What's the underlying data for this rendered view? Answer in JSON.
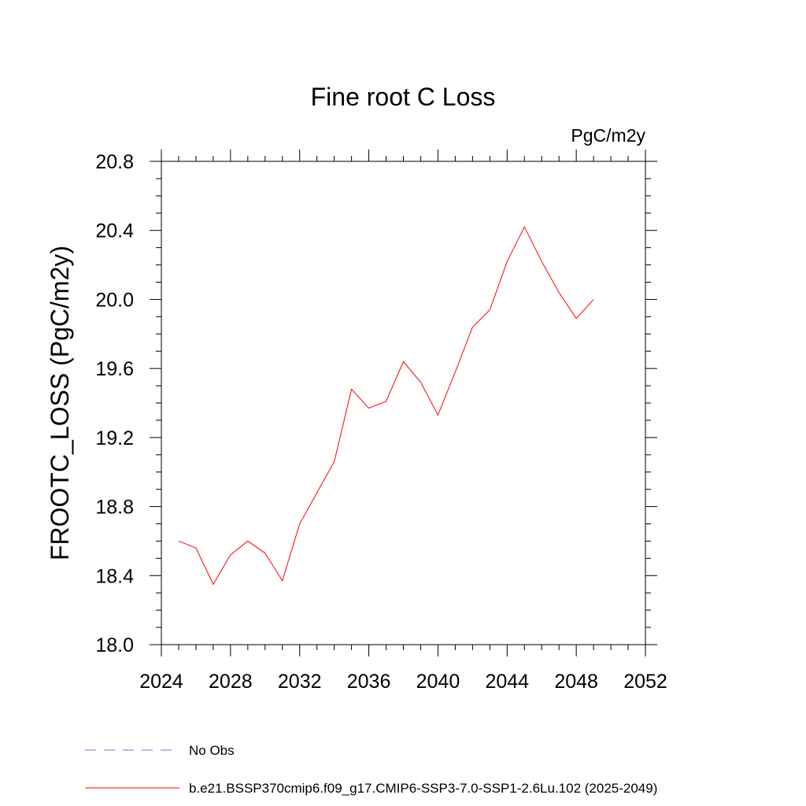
{
  "chart_data": {
    "type": "line",
    "title": "Fine root C Loss",
    "units": "PgC/m2y",
    "ylabel": "FROOTC_LOSS  (PgC/m2y)",
    "xlabel": "",
    "xlim": [
      2024,
      2052
    ],
    "ylim": [
      18.0,
      20.8
    ],
    "x_ticks": [
      2024,
      2028,
      2032,
      2036,
      2040,
      2044,
      2048,
      2052
    ],
    "x_tick_labels": [
      "2024",
      "2028",
      "2032",
      "2036",
      "2040",
      "2044",
      "2048",
      "2052"
    ],
    "y_ticks": [
      18.0,
      18.4,
      18.8,
      19.2,
      19.6,
      20.0,
      20.4,
      20.8
    ],
    "y_tick_labels": [
      "18.0",
      "18.4",
      "18.8",
      "19.2",
      "19.6",
      "20.0",
      "20.4",
      "20.8"
    ],
    "grid": false,
    "legend_position": "bottom",
    "legend": [
      {
        "label": "No Obs",
        "color": "#7b6fd0",
        "style": "dashed"
      },
      {
        "label": "b.e21.BSSP370cmip6.f09_g17.CMIP6-SSP3-7.0-SSP1-2.6Lu.102 (2025-2049)",
        "color": "#ff0000",
        "style": "solid"
      }
    ],
    "series": [
      {
        "name": "b.e21.BSSP370cmip6.f09_g17.CMIP6-SSP3-7.0-SSP1-2.6Lu.102 (2025-2049)",
        "color": "#ff0000",
        "x": [
          2025,
          2026,
          2027,
          2028,
          2029,
          2030,
          2031,
          2032,
          2033,
          2034,
          2035,
          2036,
          2037,
          2038,
          2039,
          2040,
          2041,
          2042,
          2043,
          2044,
          2045,
          2046,
          2047,
          2048,
          2049
        ],
        "y": [
          18.6,
          18.56,
          18.35,
          18.52,
          18.6,
          18.53,
          18.37,
          18.7,
          18.88,
          19.06,
          19.48,
          19.37,
          19.41,
          19.64,
          19.52,
          19.33,
          19.58,
          19.84,
          19.94,
          20.22,
          20.42,
          20.22,
          20.04,
          19.89,
          20.0
        ]
      }
    ]
  }
}
